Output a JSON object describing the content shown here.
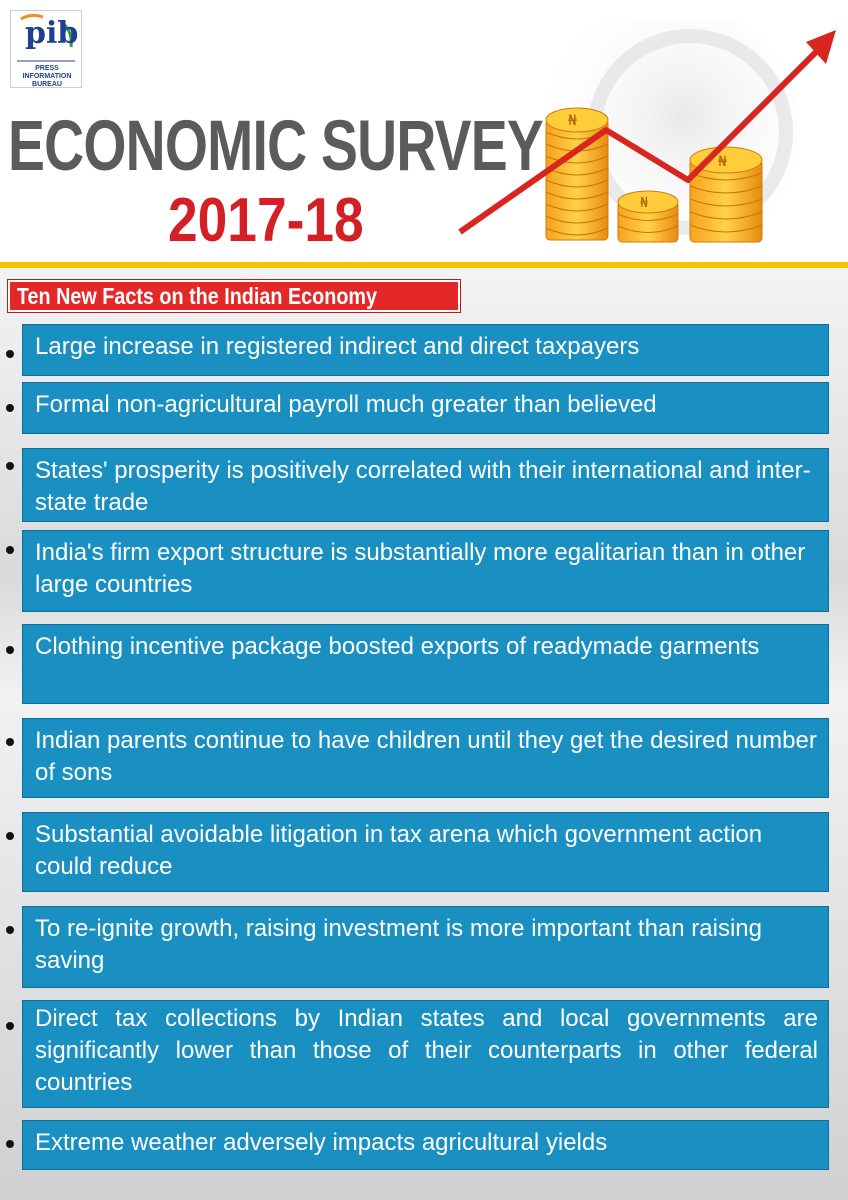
{
  "logo": {
    "text": "pib",
    "tagline": "PRESS INFORMATION BUREAU"
  },
  "title": "ECONOMIC SURVEY",
  "year": "2017-18",
  "subheading": "Ten New Facts on the Indian Economy",
  "facts": [
    "Large increase in registered indirect and direct taxpayers",
    "Formal non-agricultural payroll much greater than believed",
    "States' prosperity is positively correlated with their international and inter-state trade",
    "India's firm export structure is substantially more egalitarian than in other large countries",
    "Clothing incentive package boosted exports of readymade garments",
    "Indian parents continue to have children until they get the desired number of sons",
    "Substantial avoidable litigation in tax arena which government action could reduce",
    "To re-ignite growth, raising investment is more important than raising saving",
    "Direct tax collections by Indian states and local governments are significantly lower than those of their counterparts in other federal countries",
    "Extreme weather adversely impacts agricultural yields"
  ],
  "colors": {
    "title_gray": "#5b5b5b",
    "year_red": "#d41f26",
    "fact_blue": "#1a8fc1",
    "subheading_red": "#e42727",
    "divider_yellow": "#f5c400"
  },
  "icons": {
    "illustration": "coin-stacks-with-rising-arrow",
    "logo": "pib-logo"
  }
}
